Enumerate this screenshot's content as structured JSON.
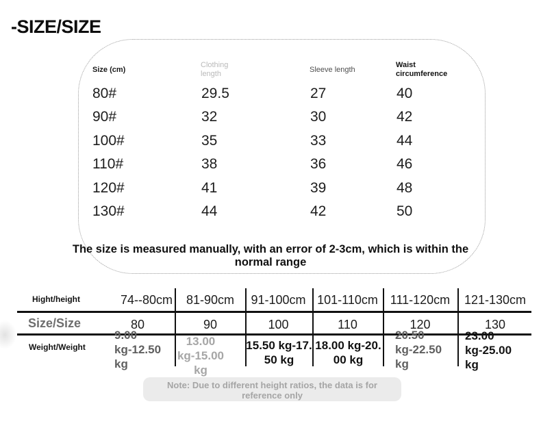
{
  "title": "-SIZE/SIZE",
  "size_table": {
    "headers": [
      "Size (cm)",
      "Clothing\nlength",
      "Sleeve length",
      "Waist\ncircumference"
    ],
    "rows": [
      {
        "size": "80#",
        "clothing_length": "29.5",
        "sleeve_length": "27",
        "waist": "40"
      },
      {
        "size": "90#",
        "clothing_length": "32",
        "sleeve_length": "30",
        "waist": "42"
      },
      {
        "size": "100#",
        "clothing_length": "35",
        "sleeve_length": "33",
        "waist": "44"
      },
      {
        "size": "110#",
        "clothing_length": "38",
        "sleeve_length": "36",
        "waist": "46"
      },
      {
        "size": "120#",
        "clothing_length": "41",
        "sleeve_length": "39",
        "waist": "48"
      },
      {
        "size": "130#",
        "clothing_length": "44",
        "sleeve_length": "42",
        "waist": "50"
      }
    ],
    "note": "The size is measured manually, with an error of 2-3cm, which is within the\nnormal range"
  },
  "height_table": {
    "row_labels": {
      "height": "Hight/height",
      "size": "Size/Size",
      "weight": "Weight/Weight"
    },
    "columns": [
      {
        "height": "74--80cm",
        "size": "80",
        "weight": "9.00 kg-12.50 kg",
        "weight_display": "9.00\nkg-12.50\nkg"
      },
      {
        "height": "81-90cm",
        "size": "90",
        "weight": "13.00 kg-15.00 kg",
        "weight_display": "13.00\nkg-15.00\nkg"
      },
      {
        "height": "91-100cm",
        "size": "100",
        "weight": "15.50 kg-17.50 kg",
        "weight_display": "15.50 kg-17.\n50 kg"
      },
      {
        "height": "101-110cm",
        "size": "110",
        "weight": "18.00 kg-20.00 kg",
        "weight_display": "18.00 kg-20.\n00 kg"
      },
      {
        "height": "111-120cm",
        "size": "120",
        "weight": "20.50 kg-22.50 kg",
        "weight_display": "20.50\nkg-22.50\nkg"
      },
      {
        "height": "121-130cm",
        "size": "130",
        "weight": "23.00 kg-25.00 kg",
        "weight_display": "23.00\nkg-25.00\nkg"
      }
    ],
    "footnote": "Note: Due to different height ratios, the data is for\nreference only"
  },
  "colors": {
    "grid_line": "#101010",
    "dotted_border": "#9a9a9a",
    "muted_header": "#b9b9b9",
    "gray_weight_text": "#5f5f5f",
    "light_gray_weight_text": "#a6a6a6",
    "pill_background": "#ebebeb",
    "pill_text": "#a5a5a5"
  }
}
